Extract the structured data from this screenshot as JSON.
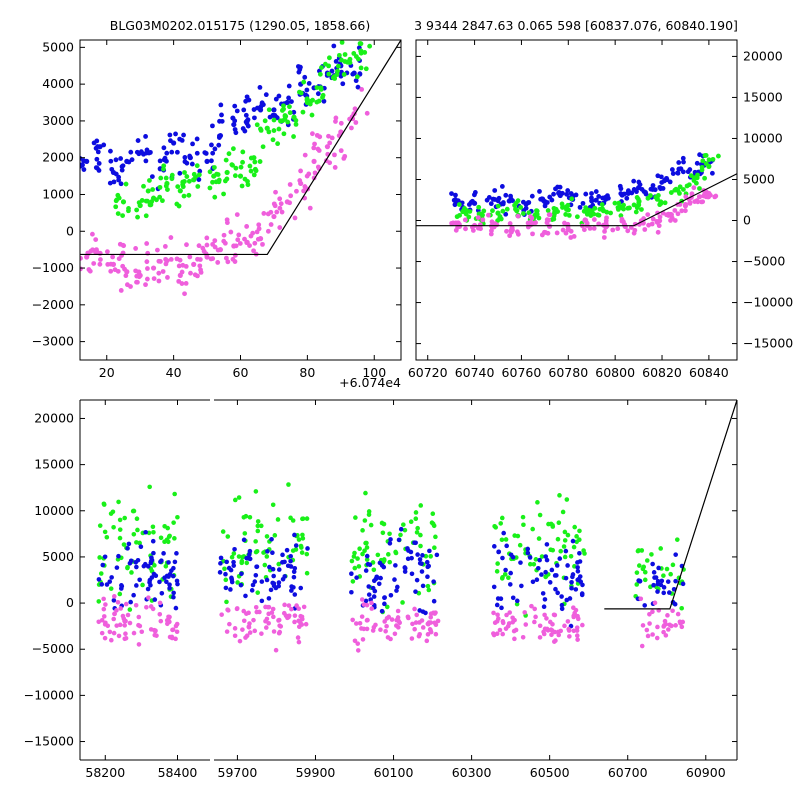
{
  "chart_data": [
    {
      "type": "scatter",
      "panel": "top-left",
      "title": "BLG03M0202.015175 (1290.05, 1858.66)",
      "xlabel": "",
      "ylabel": "",
      "x_offset_label": "+6.074e4",
      "xlim": [
        12,
        108
      ],
      "ylim": [
        -3500,
        5200
      ],
      "xticks": [
        20,
        40,
        60,
        80,
        100
      ],
      "xtick_labels": [
        "20",
        "40",
        "60",
        "80",
        "100"
      ],
      "yticks": [
        -3000,
        -2000,
        -1000,
        0,
        1000,
        2000,
        3000,
        4000,
        5000
      ],
      "ytick_labels": [
        "−3000",
        "−2000",
        "−1000",
        "0",
        "1000",
        "2000",
        "3000",
        "4000",
        "5000"
      ],
      "series": [
        {
          "name": "blue",
          "color": "#0d0ddf",
          "x": [
            14,
            18,
            22,
            26,
            31,
            36,
            40,
            45,
            50,
            54,
            58,
            62,
            66,
            70,
            74,
            78,
            82,
            86,
            90,
            94
          ],
          "y": [
            1900,
            2300,
            1600,
            1900,
            2100,
            1700,
            2400,
            2000,
            1900,
            2600,
            2900,
            3000,
            3300,
            3300,
            3500,
            4000,
            3900,
            4300,
            4500,
            4300
          ]
        },
        {
          "name": "green",
          "color": "#19f019",
          "x": [
            25,
            30,
            34,
            38,
            42,
            46,
            52,
            56,
            60,
            64,
            68,
            72,
            76,
            80,
            84,
            88,
            92,
            96
          ],
          "y": [
            800,
            700,
            900,
            1300,
            1100,
            1400,
            1500,
            1600,
            1500,
            2000,
            2800,
            3000,
            3100,
            3500,
            3900,
            4200,
            4600,
            4900
          ]
        },
        {
          "name": "pink",
          "color": "#ef5fdc",
          "x": [
            14,
            18,
            22,
            26,
            30,
            34,
            38,
            42,
            46,
            50,
            54,
            58,
            62,
            66,
            70,
            74,
            78,
            82,
            86,
            90,
            94
          ],
          "y": [
            -700,
            -600,
            -900,
            -1100,
            -1200,
            -1000,
            -800,
            -1200,
            -900,
            -700,
            -500,
            -400,
            -300,
            -200,
            400,
            800,
            1300,
            1900,
            2300,
            2700,
            3200
          ]
        }
      ],
      "model_line": {
        "x": [
          12,
          68,
          108
        ],
        "y": [
          -630,
          -630,
          5200
        ]
      }
    },
    {
      "type": "scatter",
      "panel": "top-right",
      "title": "3 9344 2847.63 0.065 598 [60837.076, 60840.190]",
      "xlabel": "",
      "ylabel": "",
      "xlim": [
        60715,
        60852
      ],
      "ylim": [
        -17000,
        22000
      ],
      "xticks": [
        60720,
        60740,
        60760,
        60780,
        60800,
        60820,
        60840
      ],
      "xtick_labels": [
        "60720",
        "60740",
        "60760",
        "60780",
        "60800",
        "60820",
        "60840"
      ],
      "yticks": [
        -15000,
        -10000,
        -5000,
        0,
        5000,
        10000,
        15000,
        20000
      ],
      "ytick_labels": [
        "−15000",
        "−10000",
        "−5000",
        "0",
        "5000",
        "10000",
        "15000",
        "20000"
      ],
      "series": [
        {
          "name": "blue",
          "color": "#0d0ddf",
          "x": [
            60733,
            60740,
            60748,
            60755,
            60762,
            60770,
            60776,
            60782,
            60790,
            60796,
            60803,
            60810,
            60816,
            60822,
            60828,
            60834,
            60838
          ],
          "y": [
            2400,
            2100,
            2600,
            2400,
            2000,
            2300,
            3400,
            3000,
            2400,
            2600,
            3100,
            4000,
            3800,
            5000,
            6300,
            5500,
            7000
          ]
        },
        {
          "name": "green",
          "color": "#19f019",
          "x": [
            60735,
            60742,
            60750,
            60758,
            60766,
            60774,
            60780,
            60788,
            60795,
            60802,
            60810,
            60818,
            60826,
            60834,
            60840
          ],
          "y": [
            1100,
            800,
            900,
            1200,
            700,
            800,
            1300,
            1000,
            1200,
            1700,
            1900,
            2600,
            3800,
            5200,
            6600
          ]
        },
        {
          "name": "pink",
          "color": "#ef5fdc",
          "x": [
            60733,
            60740,
            60748,
            60756,
            60764,
            60772,
            60780,
            60788,
            60796,
            60804,
            60812,
            60818,
            60824,
            60830,
            60836,
            60840
          ],
          "y": [
            -300,
            -600,
            -400,
            -900,
            -500,
            -700,
            -1100,
            -600,
            -800,
            -500,
            -300,
            -200,
            700,
            1800,
            2900,
            3300
          ]
        }
      ],
      "model_line": {
        "x": [
          60715,
          60808,
          60852
        ],
        "y": [
          -630,
          -630,
          5700
        ]
      }
    },
    {
      "type": "scatter",
      "panel": "bottom",
      "xlabel": "",
      "ylabel": "",
      "ylim": [
        -17000,
        22000
      ],
      "yticks": [
        -15000,
        -10000,
        -5000,
        0,
        5000,
        10000,
        15000,
        20000
      ],
      "ytick_labels": [
        "−15000",
        "−10000",
        "−5000",
        "0",
        "5000",
        "10000",
        "15000",
        "20000"
      ],
      "segments": [
        {
          "xlim": [
            58130,
            58490
          ],
          "xticks": [
            58200,
            58400
          ],
          "xtick_labels": [
            "58200",
            "58400"
          ],
          "season": [
            58180,
            58400
          ]
        },
        {
          "xlim": [
            59640,
            60980
          ],
          "xticks": [
            59700,
            59900,
            60100,
            60300,
            60500,
            60700,
            60900
          ],
          "xtick_labels": [
            "59700",
            "59900",
            "60100",
            "60300",
            "60500",
            "60700",
            "60900"
          ],
          "seasons": [
            [
              59655,
              59880
            ],
            [
              59990,
              60215
            ],
            [
              60355,
              60590
            ],
            [
              60720,
              60845
            ]
          ]
        }
      ],
      "series": [
        {
          "name": "blue",
          "color": "#0d0ddf",
          "typical_level": 3000,
          "spread": 4500
        },
        {
          "name": "green",
          "color": "#19f019",
          "typical_level": 6000,
          "spread": 6000
        },
        {
          "name": "pink",
          "color": "#ef5fdc",
          "typical_level": -2000,
          "spread": 2500
        }
      ],
      "model_line": {
        "x": [
          60640,
          60808,
          60980
        ],
        "y": [
          -630,
          -630,
          22000
        ]
      }
    }
  ]
}
